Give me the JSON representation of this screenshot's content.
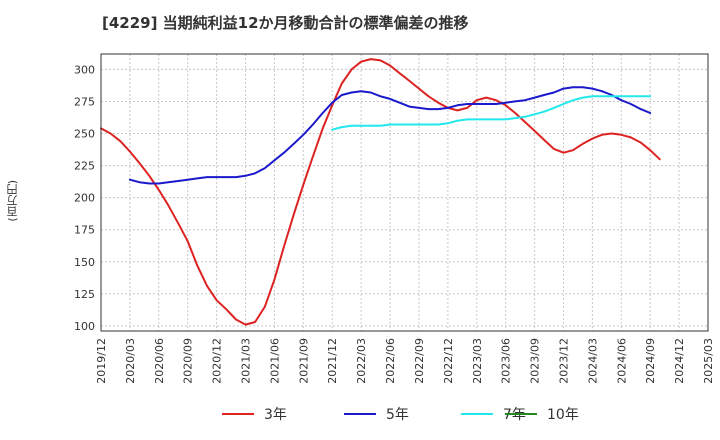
{
  "chart_data": {
    "type": "line",
    "title": "[4229]  当期純利益12か月移動合計の標準偏差の推移",
    "ylabel": "(百万円)",
    "xlabel": "",
    "ylim": [
      96,
      312
    ],
    "yticks": [
      100,
      125,
      150,
      175,
      200,
      225,
      250,
      275,
      300
    ],
    "x_categories": [
      "2019/12",
      "2020/03",
      "2020/06",
      "2020/09",
      "2020/12",
      "2021/03",
      "2021/06",
      "2021/09",
      "2021/12",
      "2022/03",
      "2022/06",
      "2022/09",
      "2022/12",
      "2023/03",
      "2023/06",
      "2023/09",
      "2023/12",
      "2024/03",
      "2024/06",
      "2024/09",
      "2024/12",
      "2025/03"
    ],
    "grid": true,
    "legend_position": "bottom",
    "series": [
      {
        "name": "3年",
        "color": "#dd2222",
        "points": [
          [
            0,
            254
          ],
          [
            0.33,
            250
          ],
          [
            0.67,
            244
          ],
          [
            1,
            236
          ],
          [
            1.33,
            227
          ],
          [
            1.67,
            217
          ],
          [
            2,
            206
          ],
          [
            2.33,
            194
          ],
          [
            2.67,
            180
          ],
          [
            3,
            166
          ],
          [
            3.33,
            147
          ],
          [
            3.67,
            131
          ],
          [
            4,
            120
          ],
          [
            4.33,
            113
          ],
          [
            4.67,
            105
          ],
          [
            5,
            101
          ],
          [
            5.33,
            103
          ],
          [
            5.67,
            115
          ],
          [
            6,
            136
          ],
          [
            6.33,
            162
          ],
          [
            6.67,
            187
          ],
          [
            7,
            210
          ],
          [
            7.33,
            232
          ],
          [
            7.67,
            254
          ],
          [
            8,
            272
          ],
          [
            8.33,
            289
          ],
          [
            8.67,
            300
          ],
          [
            9,
            306
          ],
          [
            9.33,
            308
          ],
          [
            9.67,
            307
          ],
          [
            10,
            303
          ],
          [
            10.33,
            297
          ],
          [
            10.67,
            291
          ],
          [
            11,
            285
          ],
          [
            11.33,
            279
          ],
          [
            11.67,
            274
          ],
          [
            12,
            270
          ],
          [
            12.33,
            268
          ],
          [
            12.67,
            270
          ],
          [
            13,
            276
          ],
          [
            13.33,
            278
          ],
          [
            13.67,
            276
          ],
          [
            14,
            272
          ],
          [
            14.33,
            266
          ],
          [
            14.67,
            259
          ],
          [
            15,
            252
          ],
          [
            15.33,
            245
          ],
          [
            15.67,
            238
          ],
          [
            16,
            235
          ],
          [
            16.33,
            237
          ],
          [
            16.67,
            242
          ],
          [
            17,
            246
          ],
          [
            17.33,
            249
          ],
          [
            17.67,
            250
          ],
          [
            18,
            249
          ],
          [
            18.33,
            247
          ],
          [
            18.67,
            243
          ],
          [
            19,
            237
          ],
          [
            19.33,
            230
          ]
        ]
      },
      {
        "name": "5年",
        "color": "#1a1acc",
        "points": [
          [
            1,
            214
          ],
          [
            1.33,
            212
          ],
          [
            1.67,
            211
          ],
          [
            2,
            211
          ],
          [
            2.33,
            212
          ],
          [
            2.67,
            213
          ],
          [
            3,
            214
          ],
          [
            3.33,
            215
          ],
          [
            3.67,
            216
          ],
          [
            4,
            216
          ],
          [
            4.33,
            216
          ],
          [
            4.67,
            216
          ],
          [
            5,
            217
          ],
          [
            5.33,
            219
          ],
          [
            5.67,
            223
          ],
          [
            6,
            229
          ],
          [
            6.33,
            235
          ],
          [
            6.67,
            242
          ],
          [
            7,
            249
          ],
          [
            7.33,
            257
          ],
          [
            7.67,
            266
          ],
          [
            8,
            274
          ],
          [
            8.33,
            280
          ],
          [
            8.67,
            282
          ],
          [
            9,
            283
          ],
          [
            9.33,
            282
          ],
          [
            9.67,
            279
          ],
          [
            10,
            277
          ],
          [
            10.33,
            274
          ],
          [
            10.67,
            271
          ],
          [
            11,
            270
          ],
          [
            11.33,
            269
          ],
          [
            11.67,
            269
          ],
          [
            12,
            270
          ],
          [
            12.33,
            272
          ],
          [
            12.67,
            273
          ],
          [
            13,
            273
          ],
          [
            13.33,
            273
          ],
          [
            13.67,
            273
          ],
          [
            14,
            274
          ],
          [
            14.33,
            275
          ],
          [
            14.67,
            276
          ],
          [
            15,
            278
          ],
          [
            15.33,
            280
          ],
          [
            15.67,
            282
          ],
          [
            16,
            285
          ],
          [
            16.33,
            286
          ],
          [
            16.67,
            286
          ],
          [
            17,
            285
          ],
          [
            17.33,
            283
          ],
          [
            17.67,
            280
          ],
          [
            18,
            276
          ],
          [
            18.33,
            273
          ],
          [
            18.67,
            269
          ],
          [
            19,
            266
          ]
        ]
      },
      {
        "name": "7年",
        "color": "#22e8ee",
        "points": [
          [
            8,
            253
          ],
          [
            8.33,
            255
          ],
          [
            8.67,
            256
          ],
          [
            9,
            256
          ],
          [
            9.33,
            256
          ],
          [
            9.67,
            256
          ],
          [
            10,
            257
          ],
          [
            10.33,
            257
          ],
          [
            10.67,
            257
          ],
          [
            11,
            257
          ],
          [
            11.33,
            257
          ],
          [
            11.67,
            257
          ],
          [
            12,
            258
          ],
          [
            12.33,
            260
          ],
          [
            12.67,
            261
          ],
          [
            13,
            261
          ],
          [
            13.33,
            261
          ],
          [
            13.67,
            261
          ],
          [
            14,
            261
          ],
          [
            14.33,
            262
          ],
          [
            14.67,
            263
          ],
          [
            15,
            265
          ],
          [
            15.33,
            267
          ],
          [
            15.67,
            270
          ],
          [
            16,
            273
          ],
          [
            16.33,
            276
          ],
          [
            16.67,
            278
          ],
          [
            17,
            279
          ],
          [
            17.33,
            279
          ],
          [
            17.67,
            279
          ],
          [
            18,
            279
          ],
          [
            18.33,
            279
          ],
          [
            18.67,
            279
          ],
          [
            19,
            279
          ]
        ]
      },
      {
        "name": "10年",
        "color": "#228822",
        "points": []
      }
    ]
  }
}
